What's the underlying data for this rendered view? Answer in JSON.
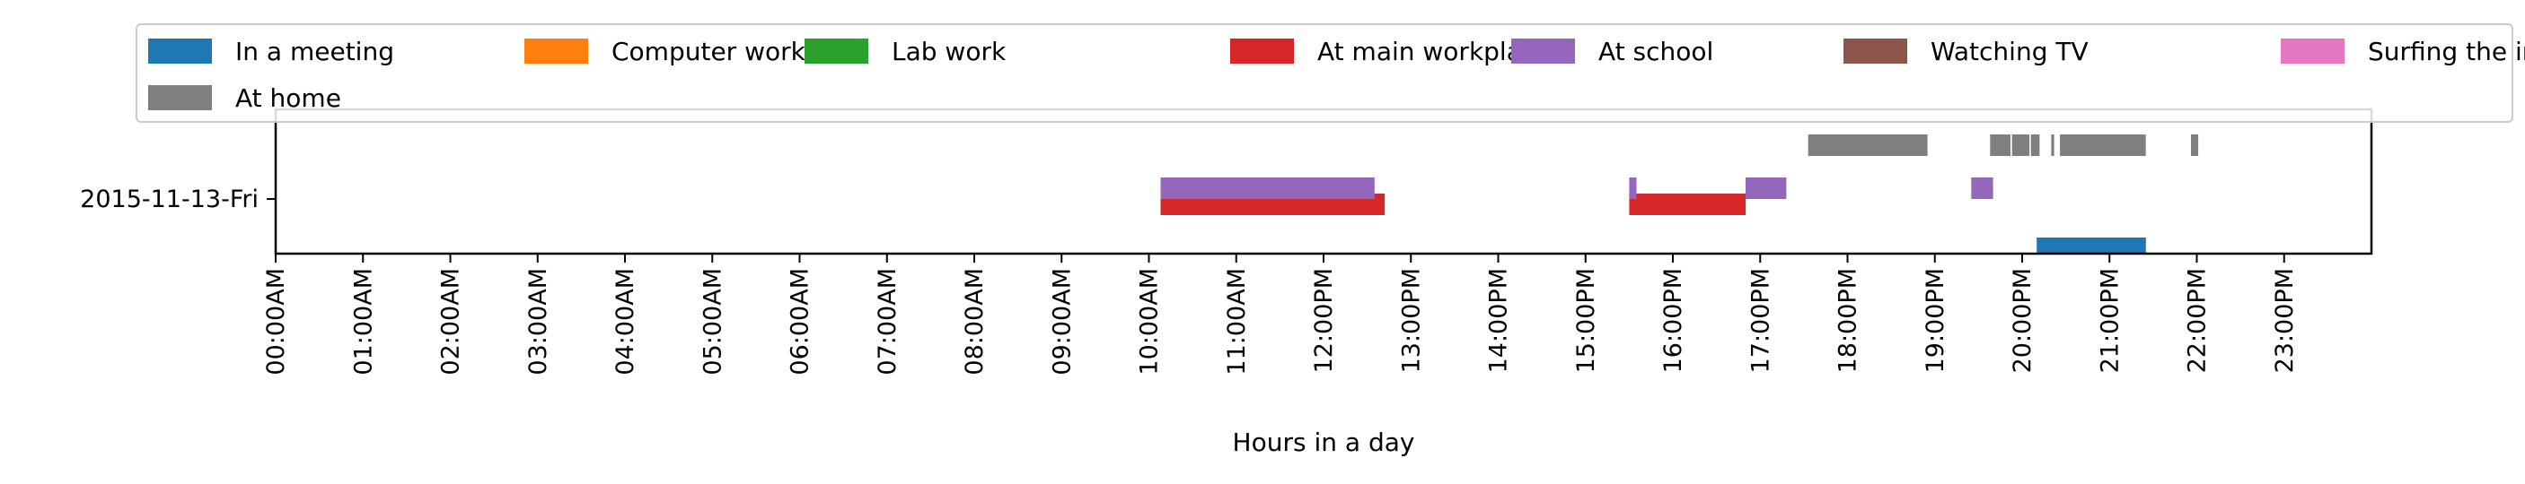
{
  "chart_data": {
    "type": "timeline",
    "title": "",
    "xlabel": "Hours in a day",
    "ylabel": "",
    "xlim_hours": [
      0,
      24
    ],
    "y_category": "2015-11-13-Fri",
    "tick_labels": [
      "00:00AM",
      "01:00AM",
      "02:00AM",
      "03:00AM",
      "04:00AM",
      "05:00AM",
      "06:00AM",
      "07:00AM",
      "08:00AM",
      "09:00AM",
      "10:00AM",
      "11:00AM",
      "12:00PM",
      "13:00PM",
      "14:00PM",
      "15:00PM",
      "16:00PM",
      "17:00PM",
      "18:00PM",
      "19:00PM",
      "20:00PM",
      "21:00PM",
      "22:00PM",
      "23:00PM"
    ],
    "legend_position": "top",
    "grid": false,
    "series": [
      {
        "name": "In a meeting",
        "color": "#1f77b4",
        "intervals": [
          [
            "20:10",
            "21:25"
          ]
        ]
      },
      {
        "name": "Computer work",
        "color": "#ff7f0e",
        "intervals": []
      },
      {
        "name": "Lab work",
        "color": "#2ca02c",
        "intervals": []
      },
      {
        "name": "At main workplace",
        "color": "#d62728",
        "intervals": [
          [
            "10:08",
            "12:42"
          ],
          [
            "15:30",
            "16:50"
          ]
        ]
      },
      {
        "name": "At school",
        "color": "#9467bd",
        "intervals": [
          [
            "10:08",
            "12:35"
          ],
          [
            "15:30",
            "15:35"
          ],
          [
            "16:50",
            "17:18"
          ],
          [
            "19:25",
            "19:40"
          ]
        ]
      },
      {
        "name": "Watching TV",
        "color": "#8c564b",
        "intervals": []
      },
      {
        "name": "Surfing the internet",
        "color": "#e377c2",
        "intervals": []
      },
      {
        "name": "At home",
        "color": "#7f7f7f",
        "intervals": [
          [
            "17:33",
            "18:55"
          ],
          [
            "19:38",
            "19:52"
          ],
          [
            "19:53",
            "20:05"
          ],
          [
            "20:06",
            "20:12"
          ],
          [
            "20:20",
            "20:22"
          ],
          [
            "20:26",
            "21:25"
          ],
          [
            "21:56",
            "22:01"
          ]
        ]
      }
    ]
  }
}
